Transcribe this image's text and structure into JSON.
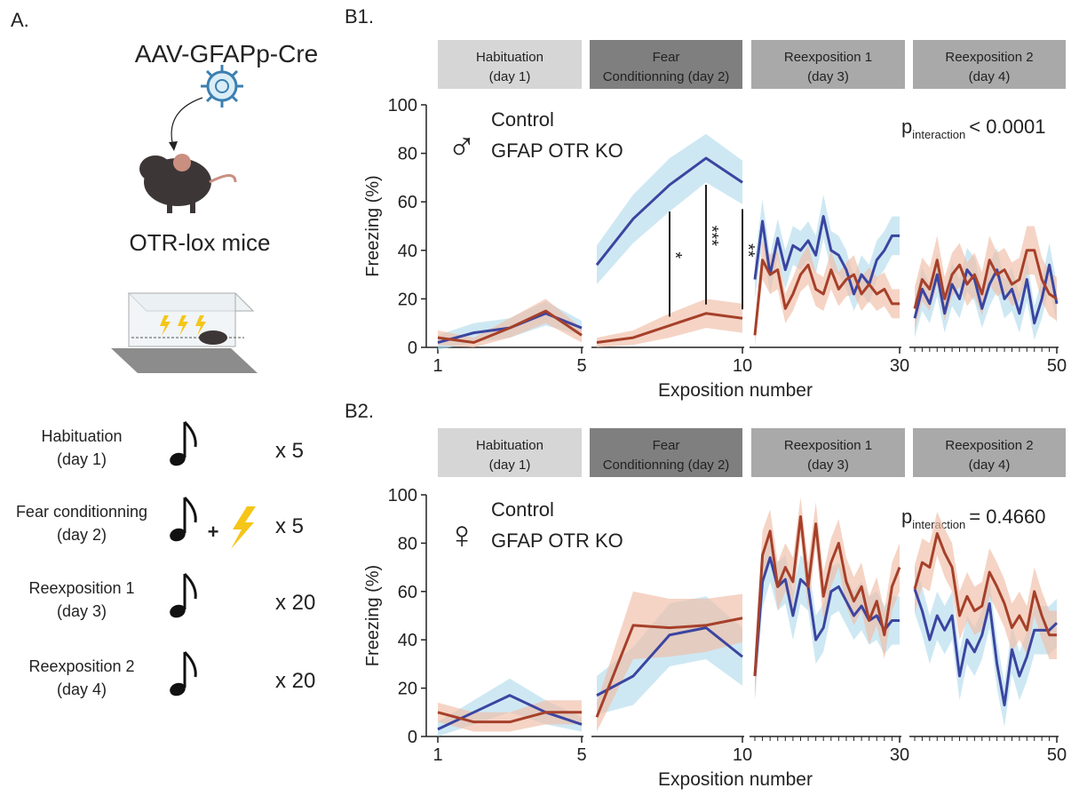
{
  "panel_a": {
    "label": "A.",
    "vector": "AAV-GFAPp-Cre",
    "mice": "OTR-lox mice",
    "protocol": [
      {
        "phase": [
          "Habituation",
          "(day 1)"
        ],
        "count": "x 5"
      },
      {
        "phase": [
          "Fear conditionning",
          "(day 2)"
        ],
        "extra": "+",
        "count": "x 5"
      },
      {
        "phase": [
          "Reexposition 1",
          "(day 3)"
        ],
        "count": "x 20"
      },
      {
        "phase": [
          "Reexposition 2",
          "(day 4)"
        ],
        "count": "x 20"
      }
    ]
  },
  "chart_data": [
    {
      "type": "line",
      "label": "B1.",
      "symbol": "♂",
      "y_label": "Freezing (%)",
      "x_label": "Exposition number",
      "p_text": "p",
      "p_subscript": "interaction",
      "p_value": "< 0.0001",
      "ylim": [
        0,
        100
      ],
      "yticks": [
        0,
        20,
        40,
        60,
        80,
        100
      ],
      "legend": [
        {
          "name": "Control",
          "color": "#3b45a0",
          "band_color": "#b3dcec"
        },
        {
          "name": "GFAP OTR KO",
          "color": "#a6402a",
          "band_color": "#f0bda6"
        }
      ],
      "panels": [
        {
          "phase": [
            "Habituation",
            "(day 1)"
          ],
          "header_color": "#d6d6d6",
          "x": [
            1,
            2,
            3,
            4,
            5
          ],
          "xlim": [
            1,
            5
          ],
          "xticks": [
            1,
            5
          ],
          "minor_ticks": false,
          "series": [
            {
              "values": [
                2,
                6,
                8,
                14,
                8
              ],
              "errors": [
                3,
                4,
                4,
                5,
                3
              ]
            },
            {
              "values": [
                4,
                2,
                8,
                15,
                5
              ],
              "errors": [
                3,
                2,
                4,
                5,
                3
              ]
            }
          ]
        },
        {
          "phase": [
            "Fear",
            "Conditionning (day 2)"
          ],
          "header_color": "#7f7f7f",
          "x": [
            6,
            7,
            8,
            9,
            10
          ],
          "xlim": [
            6,
            10
          ],
          "xticks": [
            10
          ],
          "minor_ticks": false,
          "series": [
            {
              "values": [
                34,
                53,
                67,
                78,
                68
              ],
              "errors": [
                8,
                10,
                11,
                10,
                9
              ]
            },
            {
              "values": [
                2,
                4,
                9,
                14,
                12
              ],
              "errors": [
                2,
                3,
                5,
                6,
                6
              ]
            }
          ],
          "significance": [
            {
              "x": 8,
              "label": "*"
            },
            {
              "x": 9,
              "label": "***"
            },
            {
              "x": 10,
              "label": "**"
            }
          ]
        },
        {
          "phase": [
            "Reexposition 1",
            "(day 3)"
          ],
          "header_color": "#a9a9a9",
          "x": [
            11,
            12,
            13,
            14,
            15,
            16,
            17,
            18,
            19,
            20,
            21,
            22,
            23,
            24,
            25,
            26,
            27,
            28,
            29,
            30
          ],
          "xlim": [
            11,
            30
          ],
          "xticks": [
            30
          ],
          "minor_ticks": false,
          "series": [
            {
              "values": [
                28,
                52,
                30,
                45,
                32,
                42,
                40,
                44,
                38,
                54,
                40,
                38,
                32,
                22,
                30,
                26,
                36,
                40,
                46,
                46
              ],
              "errors": [
                8,
                9,
                8,
                8,
                8,
                8,
                8,
                8,
                8,
                9,
                8,
                8,
                8,
                7,
                8,
                8,
                8,
                8,
                8,
                8
              ]
            },
            {
              "values": [
                5,
                36,
                30,
                32,
                16,
                22,
                30,
                34,
                24,
                22,
                32,
                24,
                28,
                30,
                22,
                26,
                22,
                24,
                18,
                18
              ],
              "errors": [
                4,
                8,
                8,
                8,
                6,
                7,
                7,
                8,
                7,
                7,
                8,
                7,
                7,
                8,
                7,
                7,
                7,
                7,
                6,
                6
              ]
            }
          ]
        },
        {
          "phase": [
            "Reexposition 2",
            "(day 4)"
          ],
          "header_color": "#a9a9a9",
          "x": [
            31,
            32,
            33,
            34,
            35,
            36,
            37,
            38,
            39,
            40,
            41,
            42,
            43,
            44,
            45,
            46,
            47,
            48,
            49,
            50
          ],
          "xlim": [
            31,
            50
          ],
          "xticks": [
            50
          ],
          "minor_ticks": true,
          "series": [
            {
              "values": [
                12,
                24,
                18,
                30,
                14,
                26,
                20,
                32,
                28,
                16,
                26,
                32,
                20,
                24,
                14,
                28,
                10,
                20,
                34,
                18
              ],
              "errors": [
                8,
                9,
                8,
                9,
                8,
                9,
                8,
                9,
                9,
                8,
                9,
                9,
                8,
                9,
                8,
                9,
                7,
                8,
                9,
                8
              ]
            },
            {
              "values": [
                16,
                28,
                24,
                36,
                20,
                30,
                34,
                26,
                30,
                22,
                36,
                30,
                32,
                26,
                28,
                40,
                40,
                28,
                22,
                20
              ],
              "errors": [
                9,
                9,
                9,
                10,
                9,
                9,
                9,
                9,
                9,
                9,
                10,
                9,
                9,
                9,
                9,
                10,
                10,
                9,
                9,
                9
              ]
            }
          ]
        }
      ]
    },
    {
      "type": "line",
      "label": "B2.",
      "symbol": "♀",
      "y_label": "Freezing (%)",
      "x_label": "Exposition number",
      "p_text": "p",
      "p_subscript": "interaction",
      "p_value": "= 0.4660",
      "ylim": [
        0,
        100
      ],
      "yticks": [
        0,
        20,
        40,
        60,
        80,
        100
      ],
      "legend": [
        {
          "name": "Control",
          "color": "#3b45a0",
          "band_color": "#b3dcec"
        },
        {
          "name": "GFAP OTR KO",
          "color": "#a6402a",
          "band_color": "#f0bda6"
        }
      ],
      "panels": [
        {
          "phase": [
            "Habituation",
            "(day 1)"
          ],
          "header_color": "#d6d6d6",
          "x": [
            1,
            2,
            3,
            4,
            5
          ],
          "xlim": [
            1,
            5
          ],
          "xticks": [
            1,
            5
          ],
          "minor_ticks": false,
          "series": [
            {
              "values": [
                3,
                10,
                17,
                10,
                5
              ],
              "errors": [
                3,
                5,
                7,
                5,
                3
              ]
            },
            {
              "values": [
                10,
                6,
                6,
                10,
                10
              ],
              "errors": [
                4,
                4,
                4,
                5,
                5
              ]
            }
          ]
        },
        {
          "phase": [
            "Fear",
            "Conditionning (day 2)"
          ],
          "header_color": "#7f7f7f",
          "x": [
            6,
            7,
            8,
            9,
            10
          ],
          "xlim": [
            6,
            10
          ],
          "xticks": [
            10
          ],
          "minor_ticks": false,
          "series": [
            {
              "values": [
                17,
                25,
                42,
                45,
                33
              ],
              "errors": [
                8,
                12,
                13,
                13,
                12
              ]
            },
            {
              "values": [
                8,
                46,
                45,
                46,
                49
              ],
              "errors": [
                6,
                14,
                12,
                11,
                10
              ]
            }
          ]
        },
        {
          "phase": [
            "Reexposition 1",
            "(day 3)"
          ],
          "header_color": "#a9a9a9",
          "x": [
            11,
            12,
            13,
            14,
            15,
            16,
            17,
            18,
            19,
            20,
            21,
            22,
            23,
            24,
            25,
            26,
            27,
            28,
            29,
            30
          ],
          "xlim": [
            11,
            30
          ],
          "xticks": [
            30
          ],
          "minor_ticks": true,
          "series": [
            {
              "values": [
                25,
                64,
                74,
                62,
                65,
                50,
                65,
                62,
                40,
                45,
                60,
                62,
                56,
                50,
                54,
                48,
                50,
                44,
                48,
                48
              ],
              "errors": [
                10,
                11,
                10,
                10,
                10,
                10,
                10,
                10,
                10,
                10,
                10,
                10,
                10,
                10,
                10,
                10,
                10,
                10,
                10,
                10
              ]
            },
            {
              "values": [
                25,
                75,
                85,
                62,
                70,
                64,
                91,
                62,
                88,
                58,
                72,
                80,
                64,
                56,
                62,
                48,
                56,
                42,
                62,
                70
              ],
              "errors": [
                10,
                10,
                9,
                10,
                10,
                10,
                8,
                10,
                9,
                10,
                10,
                10,
                10,
                10,
                10,
                10,
                10,
                10,
                10,
                10
              ]
            }
          ]
        },
        {
          "phase": [
            "Reexposition 2",
            "(day 4)"
          ],
          "header_color": "#a9a9a9",
          "x": [
            31,
            32,
            33,
            34,
            35,
            36,
            37,
            38,
            39,
            40,
            41,
            42,
            43,
            44,
            45,
            46,
            47,
            48,
            49,
            50
          ],
          "xlim": [
            31,
            50
          ],
          "xticks": [
            50
          ],
          "minor_ticks": true,
          "series": [
            {
              "values": [
                61,
                52,
                40,
                50,
                44,
                50,
                25,
                40,
                35,
                42,
                55,
                30,
                13,
                36,
                25,
                33,
                44,
                44,
                44,
                47
              ],
              "errors": [
                10,
                10,
                10,
                10,
                10,
                10,
                10,
                10,
                10,
                10,
                10,
                10,
                9,
                10,
                10,
                10,
                10,
                10,
                10,
                10
              ]
            },
            {
              "values": [
                61,
                72,
                70,
                84,
                76,
                70,
                50,
                58,
                52,
                54,
                68,
                62,
                55,
                45,
                50,
                44,
                60,
                50,
                42,
                42
              ],
              "errors": [
                10,
                10,
                10,
                9,
                10,
                10,
                10,
                10,
                10,
                10,
                10,
                10,
                10,
                10,
                10,
                10,
                10,
                10,
                10,
                10
              ]
            }
          ]
        }
      ]
    }
  ]
}
